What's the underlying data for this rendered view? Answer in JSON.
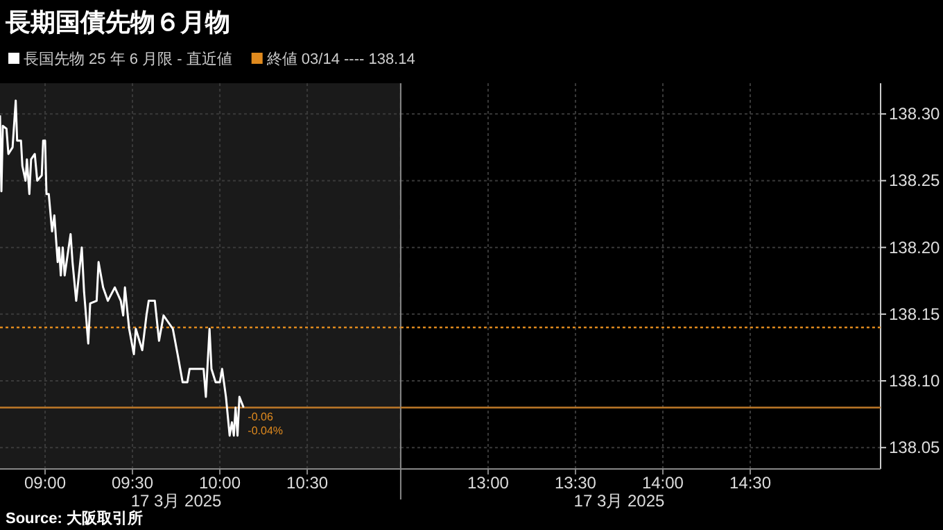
{
  "chart_data": [
    {
      "type": "line",
      "title": "長期国債先物６月物",
      "xlabel": "17 3月 2025",
      "legend": "top left",
      "grid": true,
      "line_style": "solid",
      "tick_labels": "x",
      "xlim": [
        8.742,
        11.035
      ],
      "ylim": [
        138.034,
        138.323
      ],
      "xticks": [
        {
          "value": 9,
          "label": "09:00"
        },
        {
          "value": 9.5,
          "label": "09:30"
        },
        {
          "value": 10,
          "label": "10:00"
        },
        {
          "value": 10.5,
          "label": "10:30"
        }
      ],
      "series": [
        {
          "name": "長国先物 25 年 6 月限 - 直近値",
          "color": "#ffffff",
          "x": [
            8.742,
            8.75,
            8.758,
            8.779,
            8.79,
            8.814,
            8.832,
            8.84,
            8.862,
            8.87,
            8.888,
            8.896,
            8.91,
            8.92,
            8.941,
            8.955,
            8.981,
            8.989,
            9.0,
            9.008,
            9.021,
            9.04,
            9.053,
            9.072,
            9.08,
            9.09,
            9.101,
            9.112,
            9.146,
            9.157,
            9.178,
            9.21,
            9.223,
            9.247,
            9.258,
            9.295,
            9.306,
            9.332,
            9.359,
            9.399,
            9.433,
            9.447,
            9.457,
            9.481,
            9.508,
            9.519,
            9.556,
            9.58,
            9.593,
            9.628,
            9.652,
            9.678,
            9.731,
            9.761,
            9.787,
            9.814,
            9.827,
            9.907,
            9.92,
            9.941,
            9.952,
            9.976,
            10.0,
            10.013,
            10.035,
            10.056,
            10.069,
            10.08,
            10.09,
            10.101,
            10.112,
            10.136
          ],
          "values": [
            138.299,
            138.242,
            138.291,
            138.289,
            138.27,
            138.275,
            138.31,
            138.28,
            138.28,
            138.261,
            138.25,
            138.266,
            138.24,
            138.266,
            138.27,
            138.25,
            138.254,
            138.28,
            138.28,
            138.24,
            138.24,
            138.212,
            138.224,
            138.189,
            138.2,
            138.179,
            138.2,
            138.179,
            138.21,
            138.189,
            138.16,
            138.2,
            138.167,
            138.128,
            138.158,
            138.16,
            138.189,
            138.17,
            138.16,
            138.17,
            138.16,
            138.149,
            138.17,
            138.139,
            138.12,
            138.139,
            138.123,
            138.149,
            138.16,
            138.16,
            138.13,
            138.149,
            138.139,
            138.118,
            138.099,
            138.099,
            138.109,
            138.109,
            138.088,
            138.139,
            138.109,
            138.099,
            138.099,
            138.109,
            138.088,
            138.059,
            138.069,
            138.059,
            138.08,
            138.059,
            138.088,
            138.08
          ]
        }
      ],
      "ref_lines": [
        {
          "axis": "y",
          "value": 138.14,
          "label": "終値 03/14 ---- 138.14",
          "color": "#e08a1e",
          "line_style": "dotted"
        },
        {
          "axis": "y",
          "value": 138.08,
          "color": "#c07a28",
          "line_style": "solid"
        }
      ],
      "annotations": [
        {
          "text": "-0.06",
          "x": 10.136,
          "y": 138.08
        },
        {
          "text": "-0.04%",
          "x": 10.136,
          "y": 138.08
        },
        "Source: 大阪取引所"
      ]
    },
    {
      "type": "line",
      "xlabel": "17 3月 2025",
      "grid": true,
      "xlim": [
        12.5,
        15.246
      ],
      "ylim": [
        138.034,
        138.323
      ],
      "xticks": [
        {
          "value": 13,
          "label": "13:00"
        },
        {
          "value": 13.5,
          "label": "13:30"
        },
        {
          "value": 14,
          "label": "14:00"
        },
        {
          "value": 14.5,
          "label": "14:30"
        }
      ],
      "yticks": [
        138.05,
        {
          "value": 138.1,
          "label": "138.10"
        },
        138.15,
        {
          "value": 138.2,
          "label": "138.20"
        },
        138.25,
        {
          "value": 138.3,
          "label": "138.30"
        }
      ],
      "ref_lines": [
        {
          "axis": "y",
          "value": 138.14,
          "color": "#e08a1e",
          "line_style": "dotted"
        },
        {
          "axis": "y",
          "value": 138.08,
          "color": "#c07a28",
          "line_style": "solid"
        }
      ]
    }
  ]
}
